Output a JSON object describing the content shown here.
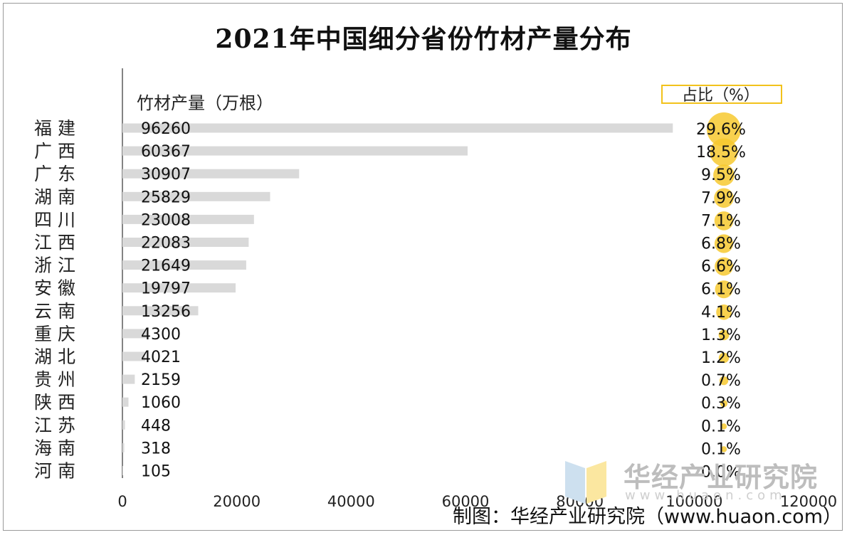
{
  "chart_data": {
    "type": "bar",
    "orientation": "horizontal",
    "title": "2021年中国细分省份竹材产量分布",
    "value_label": "竹材产量（万根）",
    "share_label": "占比（%）",
    "categories": [
      "福 建",
      "广 西",
      "广 东",
      "湖 南",
      "四 川",
      "江 西",
      "浙 江",
      "安 徽",
      "云 南",
      "重 庆",
      "湖 北",
      "贵 州",
      "陕 西",
      "江 苏",
      "海 南",
      "河 南"
    ],
    "values": [
      96260,
      60367,
      30907,
      25829,
      23008,
      22083,
      21649,
      19797,
      13256,
      4300,
      4021,
      2159,
      1060,
      448,
      318,
      105
    ],
    "value_labels": [
      "96260",
      "60367",
      "30907",
      "25829",
      "23008",
      "22083",
      "21649",
      "19797",
      "13256",
      "4300",
      "4021",
      "2159",
      "1060",
      "448",
      "318",
      "105"
    ],
    "shares": [
      29.6,
      18.5,
      9.5,
      7.9,
      7.1,
      6.8,
      6.6,
      6.1,
      4.1,
      1.3,
      1.2,
      0.7,
      0.3,
      0.1,
      0.1,
      0.0
    ],
    "share_labels": [
      "29.6%",
      "18.5%",
      "9.5%",
      "7.9%",
      "7.1%",
      "6.8%",
      "6.6%",
      "6.1%",
      "4.1%",
      "1.3%",
      "1.2%",
      "0.7%",
      "0.3%",
      "0.1%",
      "0.1%",
      "0.0%"
    ],
    "xlim": [
      0,
      120000
    ],
    "xticks": [
      0,
      20000,
      40000,
      60000,
      80000,
      100000,
      120000
    ],
    "xtick_labels": [
      "0",
      "20000",
      "40000",
      "60000",
      "80000",
      "100000",
      "120000"
    ],
    "grid": false,
    "colors": {
      "bar": "#d9d9d9",
      "bubble": "#f7c92f",
      "box": "#f2c21b"
    }
  },
  "source": "制图：华经产业研究院（www.huaon.com）",
  "watermark": {
    "name": "华经产业研究院",
    "url": "www.huaon.com"
  }
}
